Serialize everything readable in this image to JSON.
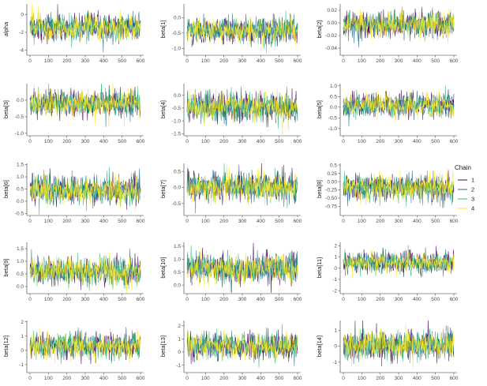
{
  "chart_data": {
    "type": "line",
    "title": "",
    "x": {
      "min": 0,
      "max": 600,
      "ticks": [
        0,
        100,
        200,
        300,
        400,
        500,
        600
      ]
    },
    "legend": {
      "title": "Chain",
      "placement": "right",
      "items": [
        {
          "label": "1",
          "color": "#440154"
        },
        {
          "label": "2",
          "color": "#31688e"
        },
        {
          "label": "3",
          "color": "#35b779"
        },
        {
          "label": "4",
          "color": "#fde725"
        }
      ]
    },
    "panels": [
      {
        "ylabel": "alpha",
        "ylim": [
          -4.5,
          1.2
        ],
        "yticks": [
          {
            "v": 0,
            "t": "0"
          },
          {
            "v": -2,
            "t": "-2"
          },
          {
            "v": -4,
            "t": "-4"
          }
        ],
        "center": -1.5,
        "spread": 0.75
      },
      {
        "ylabel": "beta[1]",
        "ylim": [
          -1.2,
          0.45
        ],
        "yticks": [
          {
            "v": 0,
            "t": "0.0"
          },
          {
            "v": -0.5,
            "t": "-0.5"
          },
          {
            "v": -1,
            "t": "-1.0"
          }
        ],
        "center": -0.42,
        "spread": 0.2
      },
      {
        "ylabel": "beta[2]",
        "ylim": [
          -0.05,
          0.03
        ],
        "yticks": [
          {
            "v": 0.02,
            "t": "0.02"
          },
          {
            "v": 0,
            "t": "0.00"
          },
          {
            "v": -0.02,
            "t": "-0.02"
          },
          {
            "v": -0.04,
            "t": "-0.04"
          }
        ],
        "center": -0.003,
        "spread": 0.01
      },
      {
        "ylabel": "beta[3]",
        "ylim": [
          -1.05,
          0.5
        ],
        "yticks": [
          {
            "v": 0,
            "t": "0.0"
          },
          {
            "v": -0.5,
            "t": "-0.5"
          },
          {
            "v": -1,
            "t": "-1.0"
          }
        ],
        "center": -0.1,
        "spread": 0.2
      },
      {
        "ylabel": "beta[4]",
        "ylim": [
          -1.55,
          0.45
        ],
        "yticks": [
          {
            "v": 0,
            "t": "0.0"
          },
          {
            "v": -0.5,
            "t": "-0.5"
          },
          {
            "v": -1,
            "t": "-1.0"
          },
          {
            "v": -1.5,
            "t": "-1.5"
          }
        ],
        "center": -0.45,
        "spread": 0.28
      },
      {
        "ylabel": "beta[5]",
        "ylim": [
          -1.3,
          1.1
        ],
        "yticks": [
          {
            "v": 1,
            "t": "1.0"
          },
          {
            "v": 0.5,
            "t": "0.5"
          },
          {
            "v": 0,
            "t": "0.0"
          },
          {
            "v": -0.5,
            "t": "-0.5"
          },
          {
            "v": -1,
            "t": "-1.0"
          }
        ],
        "center": 0.1,
        "spread": 0.28
      },
      {
        "ylabel": "beta[6]",
        "ylim": [
          -0.55,
          1.55
        ],
        "yticks": [
          {
            "v": 1.5,
            "t": "1.5"
          },
          {
            "v": 1,
            "t": "1.0"
          },
          {
            "v": 0.5,
            "t": "0.5"
          },
          {
            "v": 0,
            "t": "0.0"
          },
          {
            "v": -0.5,
            "t": "-0.5"
          }
        ],
        "center": 0.45,
        "spread": 0.3
      },
      {
        "ylabel": "beta[7]",
        "ylim": [
          -0.85,
          0.75
        ],
        "yticks": [
          {
            "v": 0.5,
            "t": "0.5"
          },
          {
            "v": 0,
            "t": "0.0"
          },
          {
            "v": -0.5,
            "t": "-0.5"
          }
        ],
        "center": 0.02,
        "spread": 0.22
      },
      {
        "ylabel": "beta[8]",
        "ylim": [
          -1.0,
          0.55
        ],
        "yticks": [
          {
            "v": 0.5,
            "t": "0.5"
          },
          {
            "v": 0.25,
            "t": "0.25"
          },
          {
            "v": 0,
            "t": "0.00"
          },
          {
            "v": -0.25,
            "t": "-0.25"
          },
          {
            "v": -0.5,
            "t": "-0.50"
          },
          {
            "v": -0.75,
            "t": "-0.75"
          }
        ],
        "center": -0.18,
        "spread": 0.2
      },
      {
        "ylabel": "beta[9]",
        "ylim": [
          -0.25,
          1.75
        ],
        "yticks": [
          {
            "v": 1.5,
            "t": "1.5"
          },
          {
            "v": 1,
            "t": "1.0"
          },
          {
            "v": 0.5,
            "t": "0.5"
          },
          {
            "v": 0,
            "t": "0.0"
          }
        ],
        "center": 0.6,
        "spread": 0.28
      },
      {
        "ylabel": "beta[10]",
        "ylim": [
          -0.3,
          1.65
        ],
        "yticks": [
          {
            "v": 1.5,
            "t": "1.5"
          },
          {
            "v": 1,
            "t": "1.0"
          },
          {
            "v": 0.5,
            "t": "0.5"
          },
          {
            "v": 0,
            "t": "0.0"
          }
        ],
        "center": 0.65,
        "spread": 0.28
      },
      {
        "ylabel": "beta[11]",
        "ylim": [
          -2.2,
          2.3
        ],
        "yticks": [
          {
            "v": 2,
            "t": "2"
          },
          {
            "v": 1,
            "t": "1"
          },
          {
            "v": 0,
            "t": "0"
          },
          {
            "v": -1,
            "t": "-1"
          },
          {
            "v": -2,
            "t": "-2"
          }
        ],
        "center": 0.5,
        "spread": 0.45
      },
      {
        "ylabel": "beta[12]",
        "ylim": [
          -1.5,
          2.1
        ],
        "yticks": [
          {
            "v": 2,
            "t": "2"
          },
          {
            "v": 1,
            "t": "1"
          },
          {
            "v": 0,
            "t": "0"
          },
          {
            "v": -1,
            "t": "-1"
          }
        ],
        "center": 0.35,
        "spread": 0.45
      },
      {
        "ylabel": "beta[13]",
        "ylim": [
          -1.5,
          2.4
        ],
        "yticks": [
          {
            "v": 2,
            "t": "2"
          },
          {
            "v": 1,
            "t": "1"
          },
          {
            "v": 0,
            "t": "0"
          },
          {
            "v": -1,
            "t": "-1"
          }
        ],
        "center": 0.45,
        "spread": 0.5
      },
      {
        "ylabel": "beta[14]",
        "ylim": [
          -1.6,
          1.6
        ],
        "yticks": [
          {
            "v": 1,
            "t": "1"
          },
          {
            "v": 0,
            "t": "0"
          },
          {
            "v": -1,
            "t": "-1"
          }
        ],
        "center": 0.05,
        "spread": 0.45
      }
    ]
  }
}
